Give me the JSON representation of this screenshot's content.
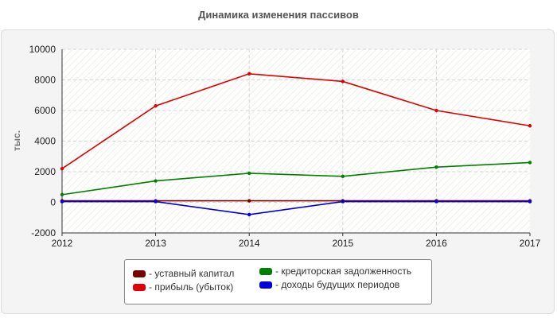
{
  "chart_data": {
    "type": "line",
    "title": "Динамика изменения пассивов",
    "ylabel": "тыс.",
    "xlabel": "",
    "x": [
      "2012",
      "2013",
      "2014",
      "2015",
      "2016",
      "2017"
    ],
    "ylim": [
      -2000,
      10000
    ],
    "yticks": [
      "10000",
      "8000",
      "6000",
      "4000",
      "2000",
      "0",
      "-2000"
    ],
    "grid": true,
    "legend_position": "bottom",
    "series": [
      {
        "name": "- уставный капитал",
        "color": "#7a0000",
        "values": [
          100,
          100,
          100,
          100,
          100,
          100
        ]
      },
      {
        "name": "- прибыль (убыток)",
        "color": "#e00000",
        "values": [
          2200,
          6300,
          8400,
          7900,
          6000,
          5000
        ]
      },
      {
        "name": "- кредиторская задолженность",
        "color": "#008000",
        "values": [
          500,
          1400,
          1900,
          1700,
          2300,
          2600
        ]
      },
      {
        "name": "- доходы будущих периодов",
        "color": "#0000dd",
        "values": [
          50,
          50,
          -800,
          50,
          50,
          50
        ]
      }
    ]
  }
}
